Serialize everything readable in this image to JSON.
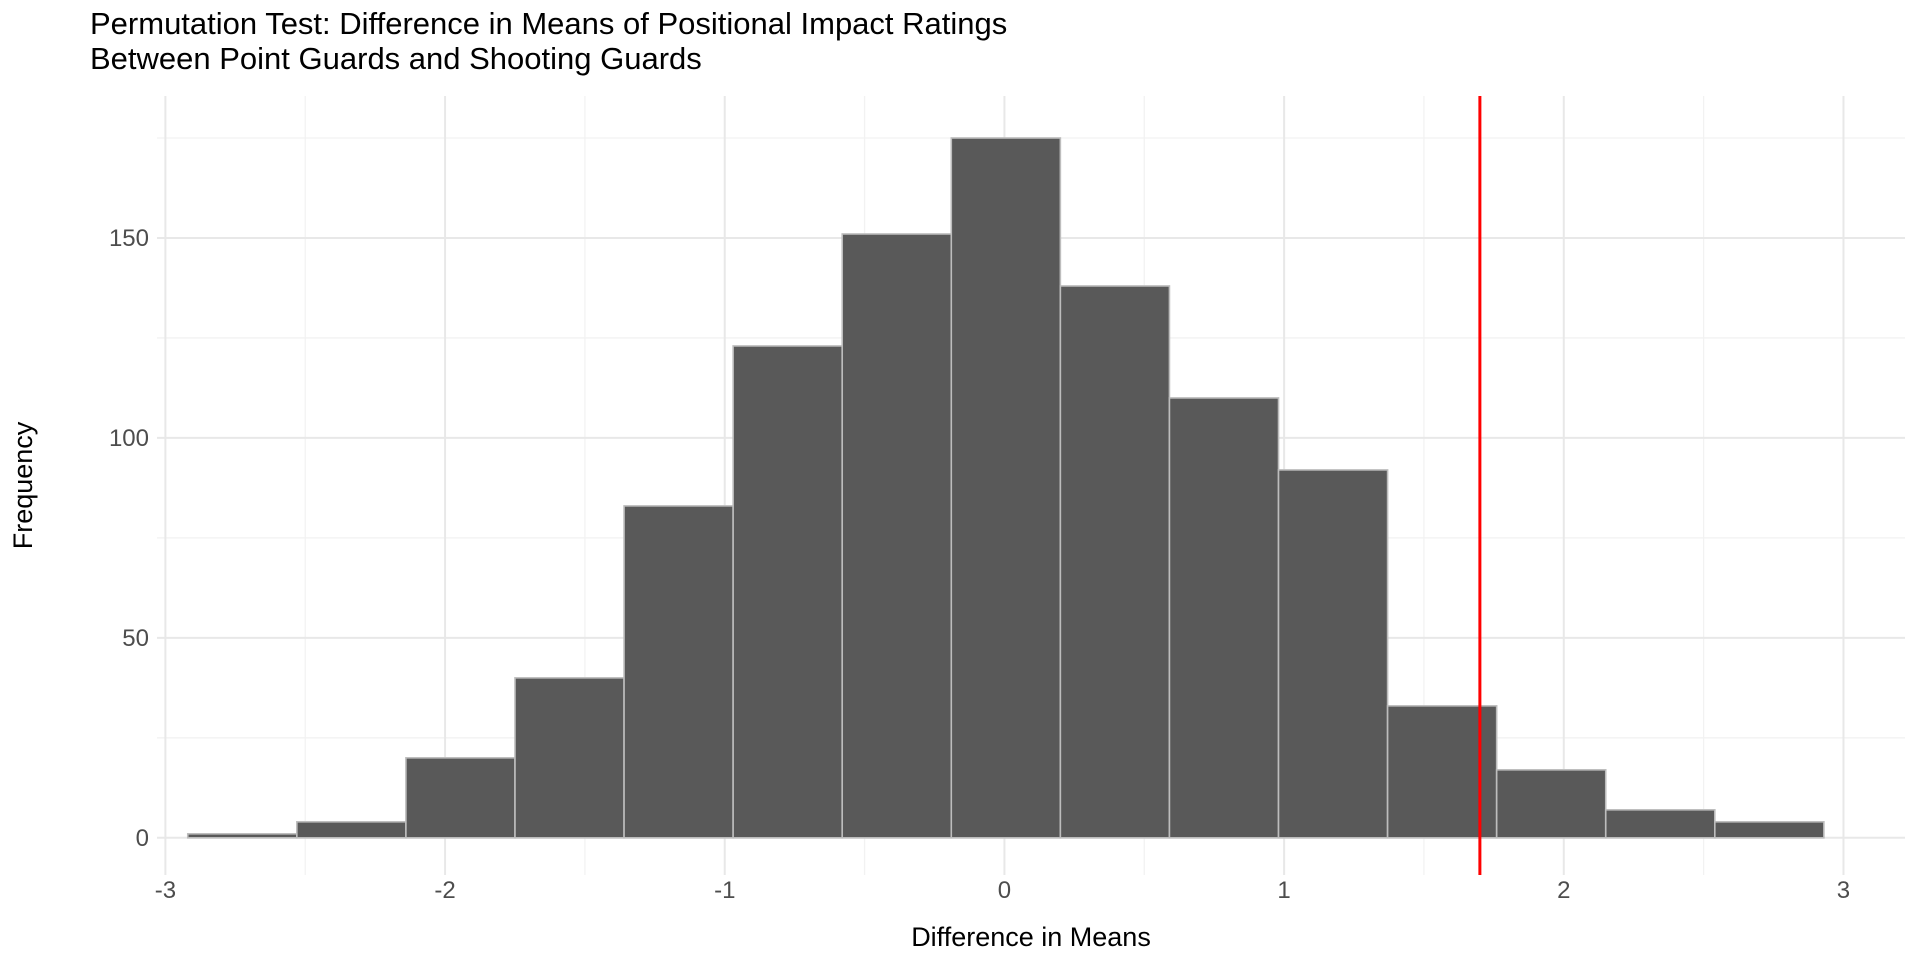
{
  "figure": {
    "title_line1": "Permutation Test: Difference in Means of Positional Impact Ratings",
    "title_line2": "Between Point Guards and Shooting Guards",
    "x_axis_label": "Difference in Means",
    "y_axis_label": "Frequency"
  },
  "chart_data": {
    "type": "bar",
    "subtype": "histogram",
    "title": "Permutation Test: Difference in Means of Positional Impact Ratings Between Point Guards and Shooting Guards",
    "xlabel": "Difference in Means",
    "ylabel": "Frequency",
    "bins": {
      "start": -2.92,
      "width": 0.39,
      "count": 15
    },
    "frequencies": [
      1,
      4,
      20,
      40,
      83,
      123,
      151,
      175,
      138,
      110,
      92,
      33,
      17,
      7,
      4
    ],
    "x_ticks": [
      -3,
      -2,
      -1,
      0,
      1,
      2,
      3
    ],
    "x_minor_ticks": [
      -2.5,
      -1.5,
      -0.5,
      0.5,
      1.5,
      2.5
    ],
    "y_ticks": [
      0,
      50,
      100,
      150
    ],
    "y_minor_ticks": [
      25,
      75,
      125,
      175
    ],
    "xlim": [
      -3.03,
      3.22
    ],
    "ylim": [
      -9.3,
      185.5
    ],
    "observed_line": {
      "x": 1.7,
      "color": "#FF0000"
    },
    "grid": true,
    "legend": null,
    "colors": {
      "bar_fill": "#595959",
      "bar_stroke": "#bdbdbd",
      "grid_major": "#e8e8e8",
      "grid_minor": "#f2f2f2",
      "tick_text": "#4d4d4d",
      "title_text": "#000000",
      "background": "#ffffff"
    }
  }
}
